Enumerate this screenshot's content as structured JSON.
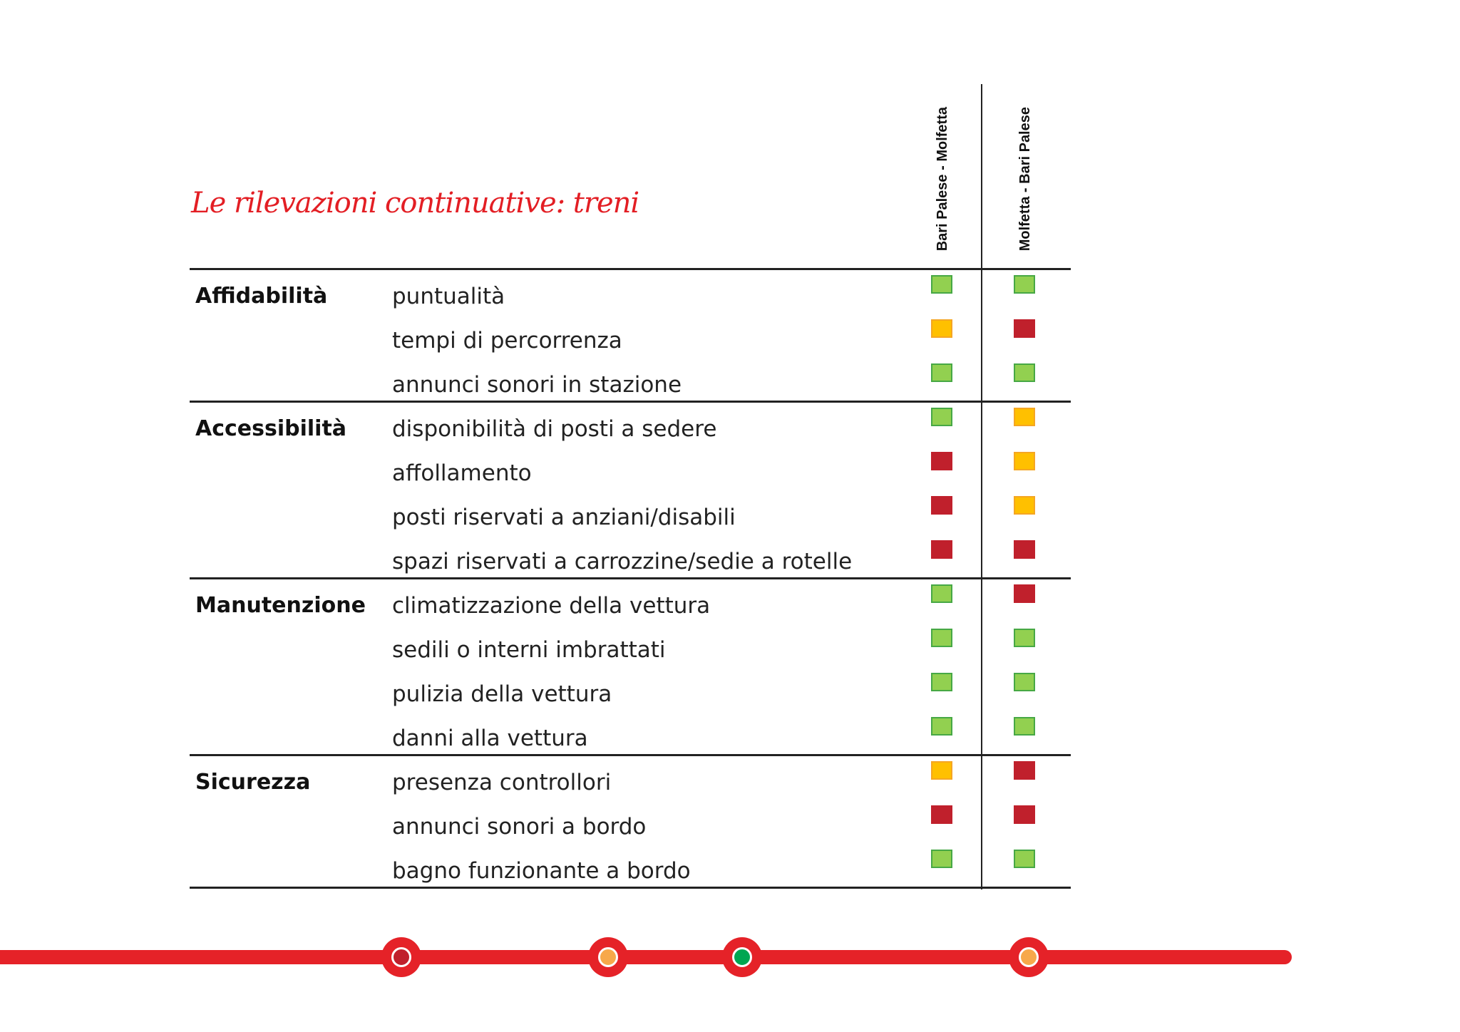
{
  "title": "Le rilevazioni continuative:  treni",
  "columns": [
    "Bari Palese - Molfetta",
    "Molfetta - Bari Palese"
  ],
  "sections": [
    {
      "category": "Affidabilità",
      "items": [
        {
          "label": "puntualità",
          "ratings": [
            "green",
            "green"
          ]
        },
        {
          "label": "tempi di percorrenza",
          "ratings": [
            "yellow",
            "red"
          ]
        },
        {
          "label": "annunci sonori in stazione",
          "ratings": [
            "green",
            "green"
          ]
        }
      ]
    },
    {
      "category": "Accessibilità",
      "items": [
        {
          "label": "disponibilità di posti a sedere",
          "ratings": [
            "green",
            "yellow"
          ]
        },
        {
          "label": "affollamento",
          "ratings": [
            "red",
            "yellow"
          ]
        },
        {
          "label": "posti riservati a anziani/disabili",
          "ratings": [
            "red",
            "yellow"
          ]
        },
        {
          "label": "spazi riservati a carrozzine/sedie a rotelle",
          "ratings": [
            "red",
            "red"
          ]
        }
      ]
    },
    {
      "category": "Manutenzione",
      "items": [
        {
          "label": "climatizzazione della vettura",
          "ratings": [
            "green",
            "red"
          ]
        },
        {
          "label": "sedili o interni imbrattati",
          "ratings": [
            "green",
            "green"
          ]
        },
        {
          "label": "pulizia della vettura",
          "ratings": [
            "green",
            "green"
          ]
        },
        {
          "label": "danni alla vettura",
          "ratings": [
            "green",
            "green"
          ]
        }
      ]
    },
    {
      "category": "Sicurezza",
      "items": [
        {
          "label": "presenza controllori",
          "ratings": [
            "yellow",
            "red"
          ]
        },
        {
          "label": "annunci sonori a bordo",
          "ratings": [
            "red",
            "red"
          ]
        },
        {
          "label": "bagno funzionante a bordo",
          "ratings": [
            "green",
            "green"
          ]
        }
      ]
    }
  ],
  "colors": {
    "green": "#92d050",
    "yellow": "#ffc000",
    "red": "#c0202c",
    "accent": "#e31e24"
  },
  "line_stations": [
    {
      "inner_color": "#c0202c"
    },
    {
      "inner_color": "#f7a84a"
    },
    {
      "inner_color": "#00a651"
    },
    {
      "inner_color": "#f7a84a"
    }
  ]
}
